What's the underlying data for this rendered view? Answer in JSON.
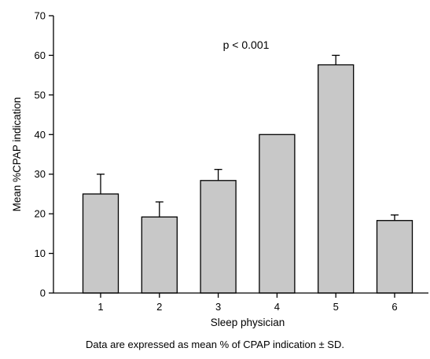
{
  "chart_data": {
    "type": "bar",
    "title": "",
    "xlabel": "Sleep physician",
    "ylabel": "Mean %CPAP indication",
    "categories": [
      "1",
      "2",
      "3",
      "4",
      "5",
      "6"
    ],
    "values": [
      25.0,
      19.2,
      28.4,
      40.0,
      57.6,
      18.3
    ],
    "error_plus": [
      5.0,
      3.8,
      2.8,
      0.0,
      2.4,
      1.4
    ],
    "ylim": [
      0,
      70
    ],
    "yticks": [
      "0",
      "10",
      "20",
      "30",
      "40",
      "50",
      "60",
      "70"
    ],
    "grid": false,
    "bar_color": "#c8c8c8",
    "bar_edge_color": "#000000",
    "annotation": "p < 0.001"
  },
  "caption": "Data are expressed as mean % of CPAP indication ± SD."
}
